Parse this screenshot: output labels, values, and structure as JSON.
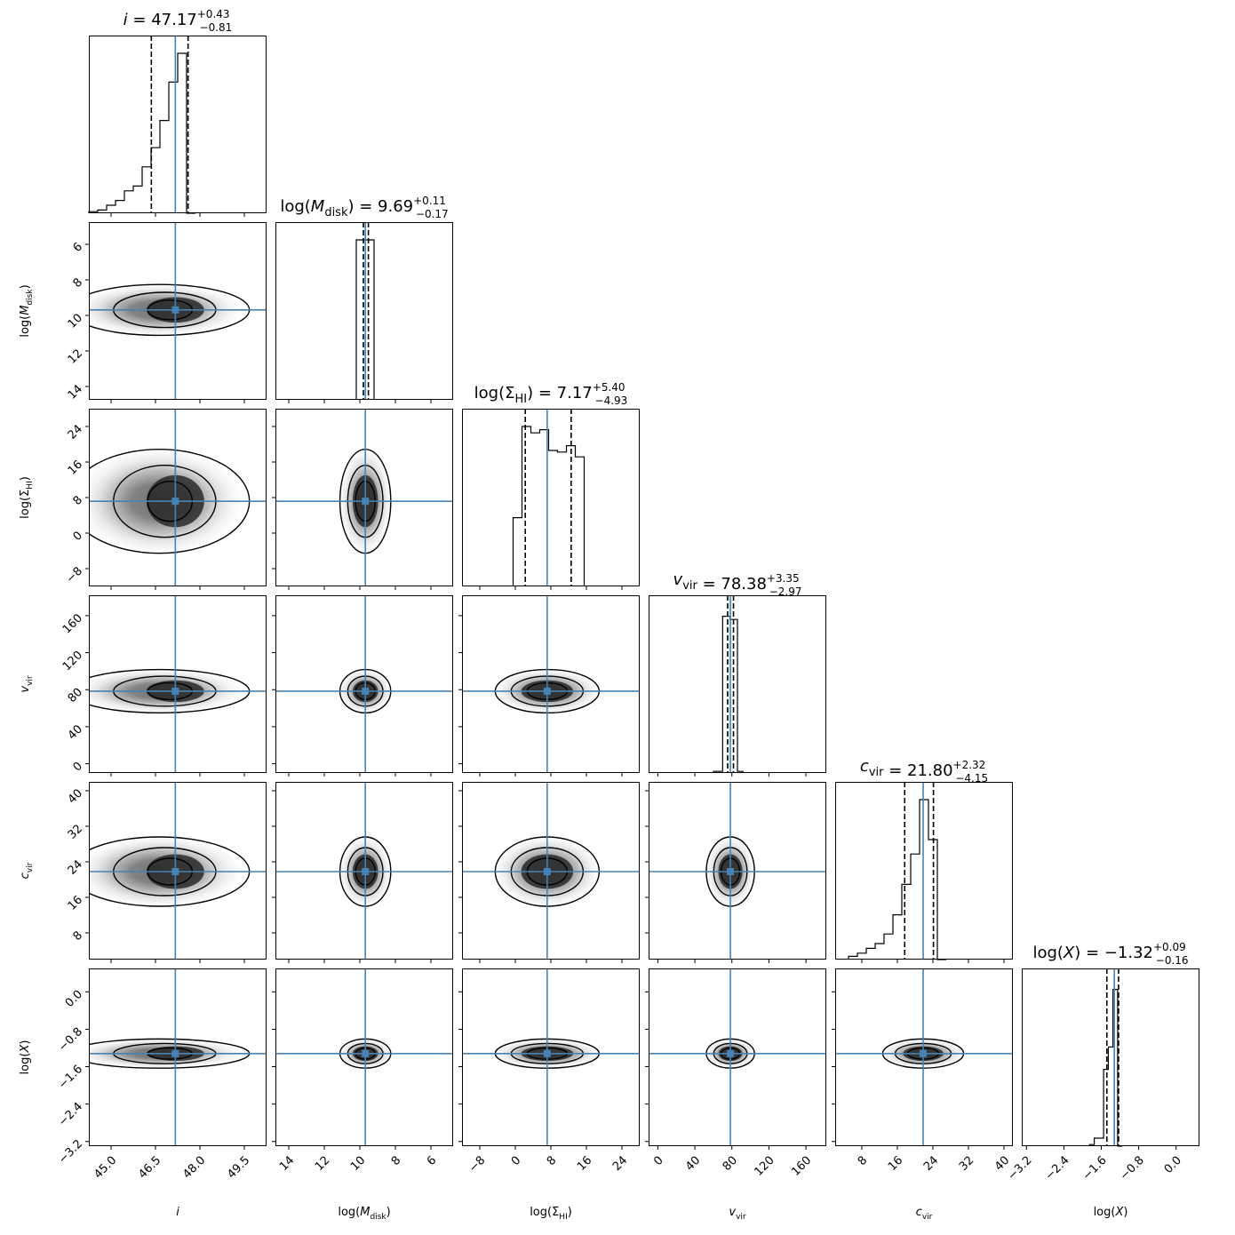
{
  "chart_data": {
    "type": "corner",
    "parameters": [
      {
        "key": "i",
        "label": "i",
        "title_name": "i",
        "title_value": "47.17",
        "err_plus": "+0.43",
        "err_minus": "−0.81",
        "range": [
          44.25,
          50.25
        ],
        "ticks": [
          "45.0",
          "46.5",
          "48.0",
          "49.5"
        ],
        "tick_values": [
          45.0,
          46.5,
          48.0,
          49.5
        ],
        "truth": 47.17,
        "quantiles": [
          46.36,
          47.6
        ],
        "reversed": false
      },
      {
        "key": "mdisk",
        "label": "log(M_disk)",
        "title_name": "log(M_disk)",
        "title_value": "9.69",
        "err_plus": "+0.11",
        "err_minus": "−0.17",
        "range": [
          4.75,
          14.75
        ],
        "ticks": [
          "14",
          "12",
          "10",
          "8",
          "6"
        ],
        "tick_values": [
          14,
          12,
          10,
          8,
          6
        ],
        "truth": 9.69,
        "quantiles": [
          9.52,
          9.8
        ],
        "reversed": true
      },
      {
        "key": "sigma",
        "label": "log(Σ_HI)",
        "title_name": "log(Σ_HI)",
        "title_value": "7.17",
        "err_plus": "+5.40",
        "err_minus": "−4.93",
        "range": [
          -12,
          28
        ],
        "ticks": [
          "−8",
          "0",
          "8",
          "16",
          "24"
        ],
        "tick_values": [
          -8,
          0,
          8,
          16,
          24
        ],
        "truth": 7.17,
        "quantiles": [
          2.24,
          12.57
        ],
        "reversed": false
      },
      {
        "key": "vvir",
        "label": "v_vir",
        "title_name": "v_vir",
        "title_value": "78.38",
        "err_plus": "+3.35",
        "err_minus": "−2.97",
        "range": [
          -10,
          182
        ],
        "ticks": [
          "0",
          "40",
          "80",
          "120",
          "160"
        ],
        "tick_values": [
          0,
          40,
          80,
          120,
          160
        ],
        "truth": 78.38,
        "quantiles": [
          75.41,
          81.73
        ],
        "reversed": false
      },
      {
        "key": "cvir",
        "label": "c_vir",
        "title_name": "c_vir",
        "title_value": "21.80",
        "err_plus": "+2.32",
        "err_minus": "−4.15",
        "range": [
          2,
          42
        ],
        "ticks": [
          "8",
          "16",
          "24",
          "32",
          "40"
        ],
        "tick_values": [
          8,
          16,
          24,
          32,
          40
        ],
        "truth": 21.8,
        "quantiles": [
          17.65,
          24.12
        ],
        "reversed": false
      },
      {
        "key": "logx",
        "label": "log(X)",
        "title_name": "log(X)",
        "title_value": "−1.32",
        "err_plus": "+0.09",
        "err_minus": "−0.16",
        "range": [
          -3.3,
          0.5
        ],
        "ticks": [
          "−3.2",
          "−2.4",
          "−1.6",
          "−0.8",
          "0.0"
        ],
        "tick_values": [
          -3.2,
          -2.4,
          -1.6,
          -0.8,
          0.0
        ],
        "truth": -1.32,
        "quantiles": [
          -1.48,
          -1.23
        ],
        "reversed": false
      }
    ],
    "histograms": {
      "i": {
        "edges": [
          44.25,
          44.55,
          44.85,
          45.15,
          45.45,
          45.75,
          46.05,
          46.35,
          46.65,
          46.95,
          47.25,
          47.55,
          47.85
        ],
        "counts": [
          0.01,
          0.02,
          0.05,
          0.08,
          0.14,
          0.17,
          0.29,
          0.41,
          0.58,
          0.82,
          1.0,
          0.0
        ]
      },
      "mdisk": {
        "edges": [
          9.2,
          9.7,
          10.2
        ],
        "counts": [
          1.0,
          1.0
        ]
      },
      "sigma": {
        "edges": [
          -0.5,
          1.5,
          3.5,
          5.5,
          7.5,
          9.5,
          11.5,
          13.5,
          15.5
        ],
        "counts": [
          0.43,
          1.0,
          0.96,
          0.98,
          0.85,
          0.84,
          0.88,
          0.81
        ]
      },
      "vvir": {
        "edges": [
          60,
          70,
          74,
          78,
          82,
          86,
          92
        ],
        "counts": [
          0.01,
          0.98,
          0.98,
          0.96,
          0.96,
          0.01
        ]
      },
      "cvir": {
        "edges": [
          5,
          7,
          9,
          11,
          13,
          15,
          17,
          19,
          21,
          23,
          25,
          27
        ],
        "counts": [
          0.02,
          0.04,
          0.07,
          0.1,
          0.16,
          0.28,
          0.47,
          0.66,
          1.0,
          0.75,
          0.0
        ]
      },
      "logx": {
        "edges": [
          -1.85,
          -1.75,
          -1.65,
          -1.55,
          -1.45,
          -1.35,
          -1.25,
          -1.15
        ],
        "counts": [
          0.01,
          0.05,
          0.05,
          0.48,
          0.62,
          0.98,
          0.0
        ]
      }
    },
    "contours_note": "2D panels: filled grayscale density with 3 contour levels centred on truth values"
  }
}
